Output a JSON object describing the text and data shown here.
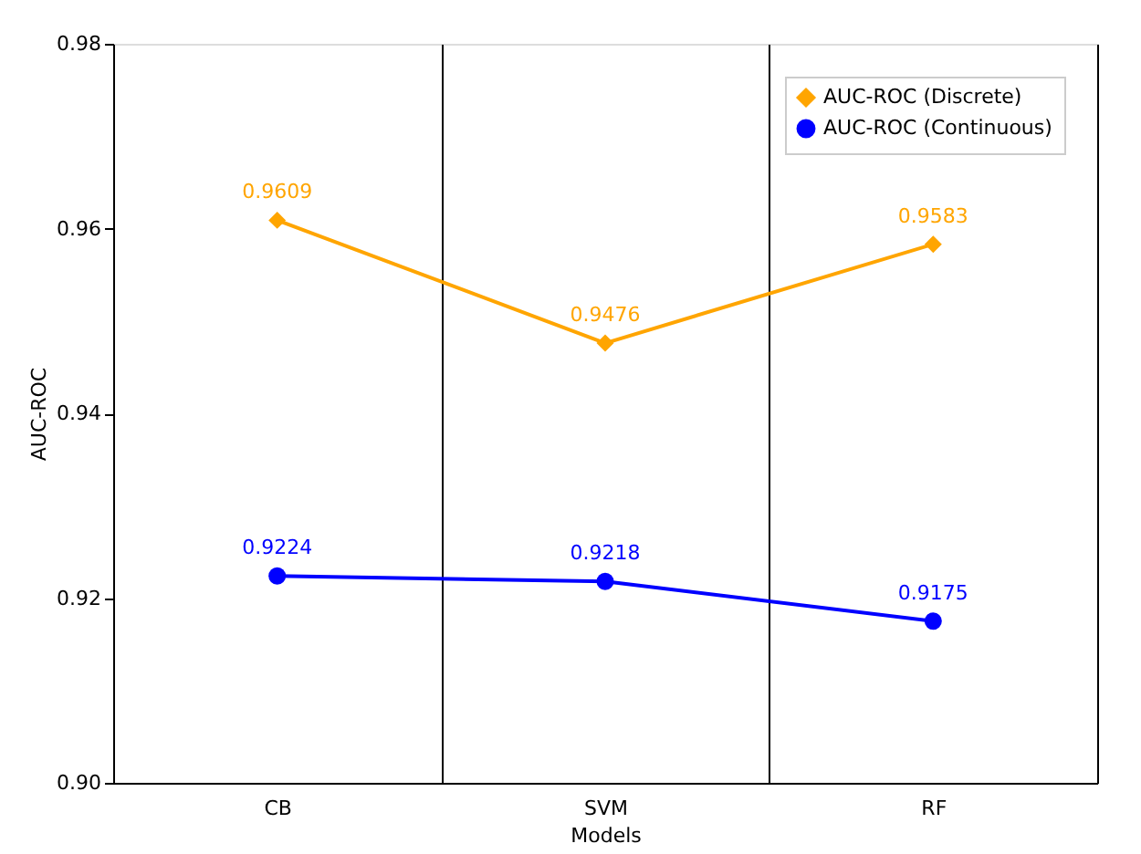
{
  "chart_data": {
    "type": "line",
    "xlabel": "Models",
    "ylabel": "AUC-ROC",
    "categories": [
      "CB",
      "SVM",
      "RF"
    ],
    "series": [
      {
        "name": "AUC-ROC (Discrete)",
        "color": "#ffa500",
        "marker": "diamond",
        "values": [
          0.9609,
          0.9476,
          0.9583
        ]
      },
      {
        "name": "AUC-ROC (Continuous)",
        "color": "#0000ff",
        "marker": "circle",
        "values": [
          0.9224,
          0.9218,
          0.9175
        ]
      }
    ],
    "ylim": [
      0.9,
      0.98
    ],
    "yticks": [
      {
        "value": 0.9,
        "label": "0.90"
      },
      {
        "value": 0.92,
        "label": "0.92"
      },
      {
        "value": 0.94,
        "label": "0.94"
      },
      {
        "value": 0.96,
        "label": "0.96"
      },
      {
        "value": 0.98,
        "label": "0.98"
      }
    ],
    "data_labels": true,
    "grid": "x",
    "legend": "top right",
    "line_style": "solid"
  }
}
